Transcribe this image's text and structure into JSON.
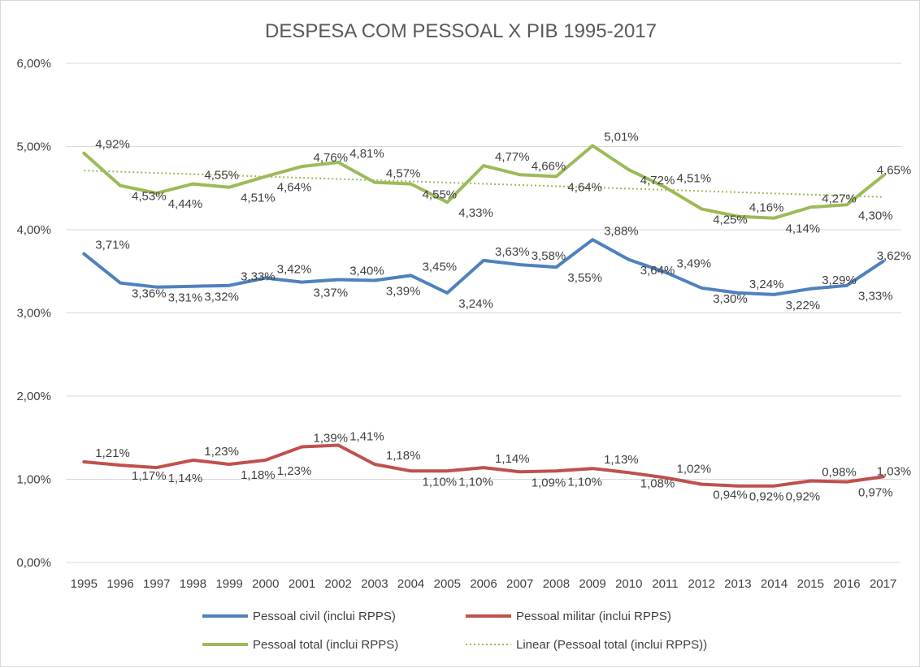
{
  "chart_data": {
    "type": "line",
    "title": "DESPESA COM PESSOAL X PIB 1995-2017",
    "categories": [
      "1995",
      "1996",
      "1997",
      "1998",
      "1999",
      "2000",
      "2001",
      "2002",
      "2003",
      "2004",
      "2005",
      "2006",
      "2007",
      "2008",
      "2009",
      "2010",
      "2011",
      "2012",
      "2013",
      "2014",
      "2015",
      "2016",
      "2017"
    ],
    "ylim": [
      0,
      6
    ],
    "yticks": [
      0,
      1,
      2,
      3,
      4,
      5,
      6
    ],
    "ytick_labels": [
      "0,00%",
      "1,00%",
      "2,00%",
      "3,00%",
      "4,00%",
      "5,00%",
      "6,00%"
    ],
    "grid": true,
    "legend_position": "bottom",
    "series": [
      {
        "name": "Pessoal civil (inclui RPPS)",
        "color": "#4f81bd",
        "values": [
          3.71,
          3.36,
          3.31,
          3.32,
          3.33,
          3.42,
          3.37,
          3.4,
          3.39,
          3.45,
          3.24,
          3.63,
          3.58,
          3.55,
          3.88,
          3.64,
          3.49,
          3.3,
          3.24,
          3.22,
          3.29,
          3.33,
          3.62
        ],
        "labels": [
          "3,71%",
          "3,36%",
          "3,31%",
          "3,32%",
          "3,33%",
          "3,42%",
          "3,37%",
          "3,40%",
          "3,39%",
          "3,45%",
          "3,24%",
          "3,63%",
          "3,58%",
          "3,55%",
          "3,88%",
          "3,64%",
          "3,49%",
          "3,30%",
          "3,24%",
          "3,22%",
          "3,29%",
          "3,33%",
          "3,62%"
        ]
      },
      {
        "name": "Pessoal militar (inclui RPPS)",
        "color": "#c0504d",
        "values": [
          1.21,
          1.17,
          1.14,
          1.23,
          1.18,
          1.23,
          1.39,
          1.41,
          1.18,
          1.1,
          1.1,
          1.14,
          1.09,
          1.1,
          1.13,
          1.08,
          1.02,
          0.94,
          0.92,
          0.92,
          0.98,
          0.97,
          1.03
        ],
        "labels": [
          "1,21%",
          "1,17%",
          "1,14%",
          "1,23%",
          "1,18%",
          "1,23%",
          "1,39%",
          "1,41%",
          "1,18%",
          "1,10%",
          "1,10%",
          "1,14%",
          "1,09%",
          "1,10%",
          "1,13%",
          "1,08%",
          "1,02%",
          "0,94%",
          "0,92%",
          "0,92%",
          "0,98%",
          "0,97%",
          "1,03%"
        ]
      },
      {
        "name": "Pessoal total (inclui RPPS)",
        "color": "#9bbb59",
        "values": [
          4.92,
          4.53,
          4.44,
          4.55,
          4.51,
          4.64,
          4.76,
          4.81,
          4.57,
          4.55,
          4.33,
          4.77,
          4.66,
          4.64,
          5.01,
          4.72,
          4.51,
          4.25,
          4.16,
          4.14,
          4.27,
          4.3,
          4.65
        ],
        "labels": [
          "4,92%",
          "4,53%",
          "4,44%",
          "4,55%",
          "4,51%",
          "4,64%",
          "4,76%",
          "4,81%",
          "4,57%",
          "4,55%",
          "4,33%",
          "4,77%",
          "4,66%",
          "4,64%",
          "5,01%",
          "4,72%",
          "4,51%",
          "4,25%",
          "4,16%",
          "4,14%",
          "4,27%",
          "4,30%",
          "4,65%"
        ]
      }
    ],
    "trendline": {
      "name": "Linear (Pessoal total (inclui RPPS))",
      "color": "#9bbb59",
      "of_series": "Pessoal total (inclui RPPS)",
      "type": "linear"
    }
  }
}
